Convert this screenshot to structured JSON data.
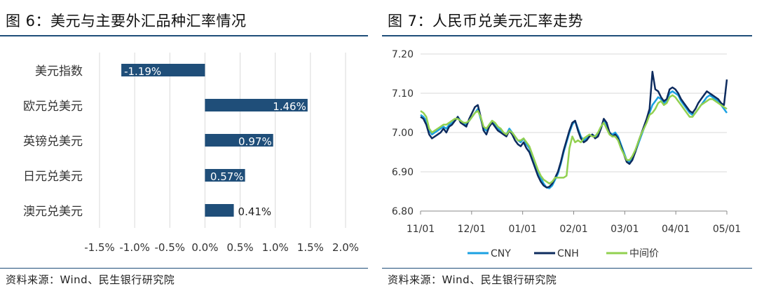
{
  "left": {
    "title": "图 6：美元与主要外汇品种汇率情况",
    "source": "资料来源：Wind、民生银行研究院"
  },
  "right": {
    "title": "图 7：人民币兑美元汇率走势",
    "source": "资料来源：Wind、民生银行研究院"
  },
  "chart_data": [
    {
      "type": "bar",
      "orientation": "horizontal",
      "categories": [
        "美元指数",
        "欧元兑美元",
        "英镑兑美元",
        "日元兑美元",
        "澳元兑美元"
      ],
      "values": [
        -1.19,
        1.46,
        0.97,
        0.57,
        0.41
      ],
      "data_labels": [
        "-1.19%",
        "1.46%",
        "0.97%",
        "0.57%",
        "0.41%"
      ],
      "xlim": [
        -1.5,
        2.0
      ],
      "xticks": [
        "-1.5%",
        "-1.0%",
        "-0.5%",
        "0.0%",
        "0.5%",
        "1.0%",
        "1.5%",
        "2.0%"
      ],
      "grid": "vertical",
      "colors": {
        "bar": "#1f4e79"
      }
    },
    {
      "type": "line",
      "x_tick_labels": [
        "11/01",
        "12/01",
        "01/01",
        "02/01",
        "03/01",
        "04/01",
        "05/01"
      ],
      "ylim": [
        6.8,
        7.2
      ],
      "yticks": [
        "6.80",
        "6.90",
        "7.00",
        "7.10",
        "7.20"
      ],
      "grid": "horizontal",
      "legend_position": "bottom",
      "colors": {
        "CNY": "#1ba1e2",
        "CNH": "#0d2b5e",
        "中间价": "#92d050"
      },
      "series": [
        {
          "name": "CNY",
          "values": [
            7.045,
            7.04,
            7.03,
            7.005,
            6.995,
            7.0,
            7.005,
            7.01,
            7.015,
            7.01,
            7.02,
            7.025,
            7.03,
            7.04,
            7.03,
            7.025,
            7.02,
            7.03,
            7.04,
            7.05,
            7.06,
            7.035,
            7.01,
            7.005,
            7.02,
            7.03,
            7.02,
            7.01,
            7.005,
            7.0,
            6.995,
            7.01,
            7.0,
            6.99,
            6.98,
            6.975,
            6.985,
            6.97,
            6.96,
            6.94,
            6.92,
            6.9,
            6.885,
            6.87,
            6.86,
            6.858,
            6.865,
            6.88,
            6.895,
            6.92,
            6.95,
            6.975,
            7.0,
            7.02,
            7.03,
            7.01,
            6.99,
            6.98,
            6.985,
            6.99,
            6.995,
            6.99,
            6.995,
            7.01,
            7.03,
            7.02,
            7.0,
            6.995,
            7.0,
            6.99,
            6.97,
            6.95,
            6.93,
            6.925,
            6.935,
            6.95,
            6.97,
            6.99,
            7.01,
            7.03,
            7.05,
            7.07,
            7.08,
            7.09,
            7.085,
            7.075,
            7.08,
            7.1,
            7.105,
            7.1,
            7.095,
            7.08,
            7.07,
            7.06,
            7.05,
            7.045,
            7.05,
            7.06,
            7.07,
            7.08,
            7.09,
            7.095,
            7.09,
            7.085,
            7.08,
            7.07,
            7.06,
            7.05
          ]
        },
        {
          "name": "CNH",
          "values": [
            7.04,
            7.035,
            7.02,
            6.995,
            6.985,
            6.99,
            6.995,
            7.0,
            7.01,
            7.0,
            7.015,
            7.02,
            7.03,
            7.04,
            7.025,
            7.02,
            7.015,
            7.035,
            7.05,
            7.065,
            7.07,
            7.04,
            7.005,
            6.995,
            7.015,
            7.025,
            7.015,
            7.005,
            7.0,
            6.995,
            6.99,
            7.005,
            6.995,
            6.98,
            6.97,
            6.965,
            6.975,
            6.96,
            6.95,
            6.93,
            6.91,
            6.89,
            6.875,
            6.865,
            6.86,
            6.862,
            6.87,
            6.885,
            6.9,
            6.925,
            6.955,
            6.98,
            7.005,
            7.025,
            7.03,
            7.005,
            6.985,
            6.975,
            6.98,
            6.99,
            6.995,
            6.985,
            6.99,
            7.01,
            7.035,
            7.025,
            7.0,
            6.99,
            6.995,
            6.985,
            6.965,
            6.945,
            6.925,
            6.92,
            6.93,
            6.95,
            6.975,
            6.995,
            7.015,
            7.035,
            7.06,
            7.155,
            7.11,
            7.105,
            7.09,
            7.08,
            7.085,
            7.11,
            7.115,
            7.11,
            7.1,
            7.085,
            7.075,
            7.065,
            7.055,
            7.05,
            7.06,
            7.075,
            7.085,
            7.095,
            7.105,
            7.1,
            7.095,
            7.09,
            7.085,
            7.075,
            7.07,
            7.135
          ]
        },
        {
          "name": "中间价",
          "values": [
            7.055,
            7.05,
            7.04,
            7.01,
            7.0,
            7.005,
            7.01,
            7.015,
            7.02,
            7.02,
            7.025,
            7.03,
            7.035,
            7.035,
            7.03,
            7.025,
            7.025,
            7.03,
            7.04,
            7.05,
            7.055,
            7.04,
            7.015,
            7.01,
            7.02,
            7.03,
            7.025,
            7.015,
            7.01,
            7.0,
            6.995,
            7.005,
            7.0,
            6.99,
            6.98,
            6.98,
            6.985,
            6.975,
            6.965,
            6.945,
            6.925,
            6.905,
            6.89,
            6.88,
            6.875,
            6.87,
            6.875,
            6.885,
            6.885,
            6.885,
            6.885,
            6.89,
            6.96,
            6.99,
            6.975,
            6.98,
            6.975,
            6.985,
            6.99,
            6.995,
            6.99,
            6.99,
            7.0,
            7.015,
            7.025,
            7.01,
            6.995,
            6.99,
            6.99,
            6.98,
            6.96,
            6.945,
            6.93,
            6.93,
            6.94,
            6.955,
            6.975,
            6.995,
            7.01,
            7.025,
            7.045,
            7.05,
            7.06,
            7.075,
            7.08,
            7.07,
            7.075,
            7.09,
            7.095,
            7.09,
            7.08,
            7.07,
            7.06,
            7.05,
            7.04,
            7.04,
            7.05,
            7.06,
            7.07,
            7.075,
            7.08,
            7.085,
            7.085,
            7.08,
            7.075,
            7.07,
            7.065,
            7.06
          ]
        }
      ]
    }
  ]
}
